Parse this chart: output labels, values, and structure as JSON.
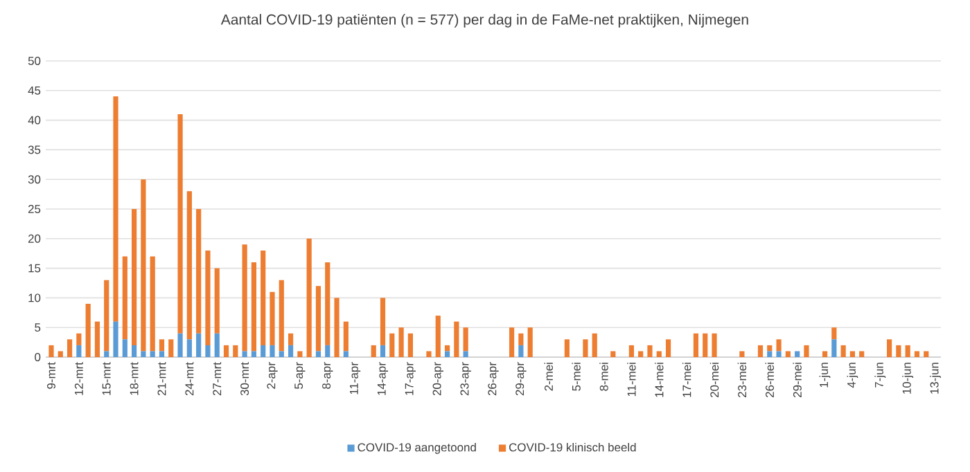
{
  "chart_data": {
    "type": "bar",
    "stacked": true,
    "title": "Aantal COVID-19 patiënten (n = 577) per dag in de FaMe-net praktijken, Nijmegen",
    "categories": [
      "9-mrt",
      null,
      null,
      "12-mrt",
      null,
      null,
      "15-mrt",
      null,
      null,
      "18-mrt",
      null,
      null,
      "21-mrt",
      null,
      null,
      "24-mrt",
      null,
      null,
      "27-mrt",
      null,
      null,
      "30-mrt",
      null,
      null,
      "2-apr",
      null,
      null,
      "5-apr",
      null,
      null,
      "8-apr",
      null,
      null,
      "11-apr",
      null,
      null,
      "14-apr",
      null,
      null,
      "17-apr",
      null,
      null,
      "20-apr",
      null,
      null,
      "23-apr",
      null,
      null,
      "26-apr",
      null,
      null,
      "29-apr",
      null,
      null,
      "2-mei",
      null,
      null,
      "5-mei",
      null,
      null,
      "8-mei",
      null,
      null,
      "11-mei",
      null,
      null,
      "14-mei",
      null,
      null,
      "17-mei",
      null,
      null,
      "20-mei",
      null,
      null,
      "23-mei",
      null,
      null,
      "26-mei",
      null,
      null,
      "29-mei",
      null,
      null,
      "1-jun",
      null,
      null,
      "4-jun",
      null,
      null,
      "7-jun",
      null,
      null,
      "10-jun",
      null,
      null,
      "13-jun"
    ],
    "series": [
      {
        "name": "COVID-19 aangetoond",
        "color": "#5b9bd5",
        "values": [
          0,
          0,
          0,
          2,
          0,
          0,
          1,
          6,
          3,
          2,
          1,
          1,
          1,
          0,
          4,
          3,
          4,
          2,
          4,
          0,
          0,
          1,
          1,
          2,
          2,
          1,
          2,
          0,
          0,
          1,
          2,
          0,
          1,
          0,
          0,
          0,
          2,
          0,
          0,
          0,
          0,
          0,
          0,
          1,
          0,
          1,
          0,
          0,
          0,
          0,
          0,
          2,
          0,
          0,
          0,
          0,
          0,
          0,
          0,
          0,
          0,
          0,
          0,
          0,
          0,
          0,
          0,
          0,
          0,
          0,
          0,
          0,
          0,
          0,
          0,
          0,
          0,
          0,
          1,
          1,
          0,
          1,
          0,
          0,
          0,
          3,
          0,
          0,
          0,
          0,
          0,
          0,
          0,
          0,
          0,
          0,
          0
        ]
      },
      {
        "name": "COVID-19 klinisch beeld",
        "color": "#ed7d31",
        "values": [
          2,
          1,
          3,
          2,
          9,
          6,
          12,
          38,
          14,
          23,
          29,
          16,
          2,
          3,
          37,
          25,
          21,
          16,
          11,
          2,
          2,
          18,
          15,
          16,
          9,
          12,
          2,
          1,
          20,
          11,
          14,
          10,
          5,
          0,
          0,
          2,
          8,
          4,
          5,
          4,
          0,
          1,
          7,
          1,
          6,
          4,
          0,
          0,
          0,
          0,
          5,
          2,
          5,
          0,
          0,
          0,
          3,
          0,
          3,
          4,
          0,
          1,
          0,
          2,
          1,
          2,
          1,
          3,
          0,
          0,
          4,
          4,
          4,
          0,
          0,
          1,
          0,
          2,
          1,
          2,
          1,
          0,
          2,
          0,
          1,
          2,
          2,
          1,
          1,
          0,
          0,
          3,
          2,
          2,
          1,
          1,
          0
        ]
      }
    ],
    "ylim": [
      0,
      50
    ],
    "yticks": [
      0,
      5,
      10,
      15,
      20,
      25,
      30,
      35,
      40,
      45,
      50
    ],
    "grid": "y",
    "legend": "bottom"
  }
}
